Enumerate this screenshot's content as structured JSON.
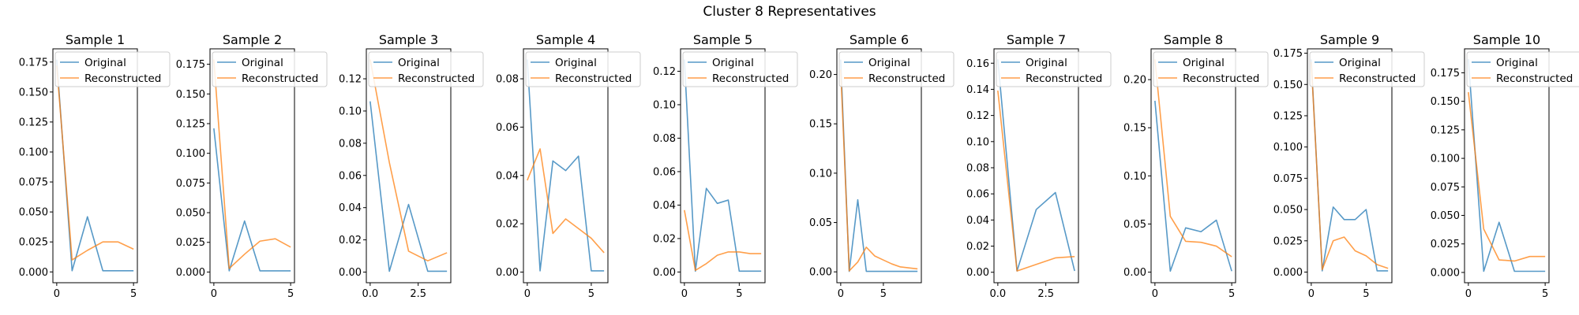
{
  "figure": {
    "suptitle": "Cluster 8 Representatives"
  },
  "colors": {
    "original": "#1f77b4",
    "reconstructed": "#ff7f0e"
  },
  "legend": {
    "placement": "upper-right",
    "labels": [
      "Original",
      "Reconstructed"
    ]
  },
  "chart_data": [
    {
      "type": "line",
      "title": "Sample 1",
      "x": [
        0,
        1,
        2,
        3,
        4,
        5
      ],
      "series": [
        {
          "name": "Original",
          "values": [
            0.177,
            0.001,
            0.046,
            0.001,
            0.001,
            0.001
          ]
        },
        {
          "name": "Reconstructed",
          "values": [
            0.172,
            0.01,
            0.018,
            0.025,
            0.025,
            0.019
          ]
        }
      ],
      "xlim": [
        -0.25,
        5.25
      ],
      "ylim": [
        -0.009,
        0.186
      ],
      "xticks": [
        0,
        5
      ],
      "yticks": [
        0.0,
        0.025,
        0.05,
        0.075,
        0.1,
        0.125,
        0.15,
        0.175
      ],
      "ytick_labels": [
        "0.000",
        "0.025",
        "0.050",
        "0.075",
        "0.100",
        "0.125",
        "0.150",
        "0.175"
      ]
    },
    {
      "type": "line",
      "title": "Sample 2",
      "x": [
        0,
        1,
        2,
        3,
        4,
        5
      ],
      "series": [
        {
          "name": "Original",
          "values": [
            0.121,
            0.001,
            0.043,
            0.001,
            0.001,
            0.001
          ]
        },
        {
          "name": "Reconstructed",
          "values": [
            0.179,
            0.003,
            0.015,
            0.026,
            0.028,
            0.021
          ]
        }
      ],
      "xlim": [
        -0.25,
        5.25
      ],
      "ylim": [
        -0.009,
        0.188
      ],
      "xticks": [
        0,
        5
      ],
      "yticks": [
        0.0,
        0.025,
        0.05,
        0.075,
        0.1,
        0.125,
        0.15,
        0.175
      ],
      "ytick_labels": [
        "0.000",
        "0.025",
        "0.050",
        "0.075",
        "0.100",
        "0.125",
        "0.150",
        "0.175"
      ]
    },
    {
      "type": "line",
      "title": "Sample 3",
      "x": [
        0,
        1,
        2,
        3,
        4
      ],
      "series": [
        {
          "name": "Original",
          "values": [
            0.106,
            0.0005,
            0.042,
            0.0005,
            0.0005
          ]
        },
        {
          "name": "Reconstructed",
          "values": [
            0.132,
            0.068,
            0.013,
            0.007,
            0.012
          ]
        }
      ],
      "xlim": [
        -0.2,
        4.2
      ],
      "ylim": [
        -0.0066,
        0.1386
      ],
      "xticks": [
        0.0,
        2.5
      ],
      "xtick_labels": [
        "0.0",
        "2.5"
      ],
      "yticks": [
        0.0,
        0.02,
        0.04,
        0.06,
        0.08,
        0.1,
        0.12
      ],
      "ytick_labels": [
        "0.00",
        "0.02",
        "0.04",
        "0.06",
        "0.08",
        "0.10",
        "0.12"
      ]
    },
    {
      "type": "line",
      "title": "Sample 4",
      "x": [
        0,
        1,
        2,
        3,
        4,
        5,
        6
      ],
      "series": [
        {
          "name": "Original",
          "values": [
            0.088,
            0.0005,
            0.046,
            0.042,
            0.048,
            0.0005,
            0.0005
          ]
        },
        {
          "name": "Reconstructed",
          "values": [
            0.038,
            0.051,
            0.016,
            0.022,
            0.018,
            0.014,
            0.008
          ]
        }
      ],
      "xlim": [
        -0.3,
        6.3
      ],
      "ylim": [
        -0.0044,
        0.0924
      ],
      "xticks": [
        0,
        5
      ],
      "yticks": [
        0.0,
        0.02,
        0.04,
        0.06,
        0.08
      ],
      "ytick_labels": [
        "0.00",
        "0.02",
        "0.04",
        "0.06",
        "0.08"
      ]
    },
    {
      "type": "line",
      "title": "Sample 5",
      "x": [
        0,
        1,
        2,
        3,
        4,
        5,
        6,
        7
      ],
      "series": [
        {
          "name": "Original",
          "values": [
            0.127,
            0.0005,
            0.05,
            0.041,
            0.043,
            0.0005,
            0.0005,
            0.0005
          ]
        },
        {
          "name": "Reconstructed",
          "values": [
            0.037,
            0.001,
            0.005,
            0.01,
            0.012,
            0.012,
            0.011,
            0.011
          ]
        }
      ],
      "xlim": [
        -0.35,
        7.35
      ],
      "ylim": [
        -0.0064,
        0.1334
      ],
      "xticks": [
        0,
        5
      ],
      "yticks": [
        0.0,
        0.02,
        0.04,
        0.06,
        0.08,
        0.1,
        0.12
      ],
      "ytick_labels": [
        "0.00",
        "0.02",
        "0.04",
        "0.06",
        "0.08",
        "0.10",
        "0.12"
      ]
    },
    {
      "type": "line",
      "title": "Sample 6",
      "x": [
        0,
        1,
        2,
        3,
        4,
        5,
        6,
        7,
        8,
        9
      ],
      "series": [
        {
          "name": "Original",
          "values": [
            0.215,
            0.0005,
            0.073,
            0.0005,
            0.0005,
            0.0005,
            0.0005,
            0.0005,
            0.0005,
            0.0005
          ]
        },
        {
          "name": "Reconstructed",
          "values": [
            0.205,
            0.001,
            0.01,
            0.025,
            0.016,
            0.012,
            0.008,
            0.005,
            0.004,
            0.003
          ]
        }
      ],
      "xlim": [
        -0.45,
        9.45
      ],
      "ylim": [
        -0.011,
        0.226
      ],
      "xticks": [
        0,
        5
      ],
      "yticks": [
        0.0,
        0.05,
        0.1,
        0.15,
        0.2
      ],
      "ytick_labels": [
        "0.00",
        "0.05",
        "0.10",
        "0.15",
        "0.20"
      ]
    },
    {
      "type": "line",
      "title": "Sample 7",
      "x": [
        0,
        1,
        2,
        3,
        4
      ],
      "series": [
        {
          "name": "Original",
          "values": [
            0.163,
            0.001,
            0.048,
            0.061,
            0.001
          ]
        },
        {
          "name": "Reconstructed",
          "values": [
            0.139,
            0.001,
            0.006,
            0.011,
            0.012
          ]
        }
      ],
      "xlim": [
        -0.2,
        4.2
      ],
      "ylim": [
        -0.008,
        0.171
      ],
      "xticks": [
        0.0,
        2.5
      ],
      "xtick_labels": [
        "0.0",
        "2.5"
      ],
      "yticks": [
        0.0,
        0.02,
        0.04,
        0.06,
        0.08,
        0.1,
        0.12,
        0.14,
        0.16
      ],
      "ytick_labels": [
        "0.00",
        "0.02",
        "0.04",
        "0.06",
        "0.08",
        "0.10",
        "0.12",
        "0.14",
        "0.16"
      ]
    },
    {
      "type": "line",
      "title": "Sample 8",
      "x": [
        0,
        1,
        2,
        3,
        4,
        5
      ],
      "series": [
        {
          "name": "Original",
          "values": [
            0.178,
            0.001,
            0.046,
            0.042,
            0.054,
            0.001
          ]
        },
        {
          "name": "Reconstructed",
          "values": [
            0.221,
            0.058,
            0.032,
            0.031,
            0.027,
            0.016
          ]
        }
      ],
      "xlim": [
        -0.25,
        5.25
      ],
      "ylim": [
        -0.011,
        0.232
      ],
      "xticks": [
        0,
        5
      ],
      "yticks": [
        0.0,
        0.05,
        0.1,
        0.15,
        0.2
      ],
      "ytick_labels": [
        "0.00",
        "0.05",
        "0.10",
        "0.15",
        "0.20"
      ]
    },
    {
      "type": "line",
      "title": "Sample 9",
      "x": [
        0,
        1,
        2,
        3,
        4,
        5,
        6,
        7
      ],
      "series": [
        {
          "name": "Original",
          "values": [
            0.17,
            0.001,
            0.052,
            0.042,
            0.042,
            0.05,
            0.001,
            0.001
          ]
        },
        {
          "name": "Reconstructed",
          "values": [
            0.168,
            0.002,
            0.025,
            0.028,
            0.017,
            0.013,
            0.006,
            0.003
          ]
        }
      ],
      "xlim": [
        -0.35,
        7.35
      ],
      "ylim": [
        -0.0085,
        0.1785
      ],
      "xticks": [
        0,
        5
      ],
      "yticks": [
        0.0,
        0.025,
        0.05,
        0.075,
        0.1,
        0.125,
        0.15,
        0.175
      ],
      "ytick_labels": [
        "0.000",
        "0.025",
        "0.050",
        "0.075",
        "0.100",
        "0.125",
        "0.150",
        "0.175"
      ]
    },
    {
      "type": "line",
      "title": "Sample 10",
      "x": [
        0,
        1,
        2,
        3,
        4,
        5
      ],
      "series": [
        {
          "name": "Original",
          "values": [
            0.187,
            0.001,
            0.044,
            0.001,
            0.001,
            0.001
          ]
        },
        {
          "name": "Reconstructed",
          "values": [
            0.158,
            0.038,
            0.011,
            0.01,
            0.014,
            0.014
          ]
        }
      ],
      "xlim": [
        -0.25,
        5.25
      ],
      "ylim": [
        -0.009,
        0.196
      ],
      "xticks": [
        0,
        5
      ],
      "yticks": [
        0.0,
        0.025,
        0.05,
        0.075,
        0.1,
        0.125,
        0.15,
        0.175
      ],
      "ytick_labels": [
        "0.000",
        "0.025",
        "0.050",
        "0.075",
        "0.100",
        "0.125",
        "0.150",
        "0.175"
      ]
    }
  ]
}
